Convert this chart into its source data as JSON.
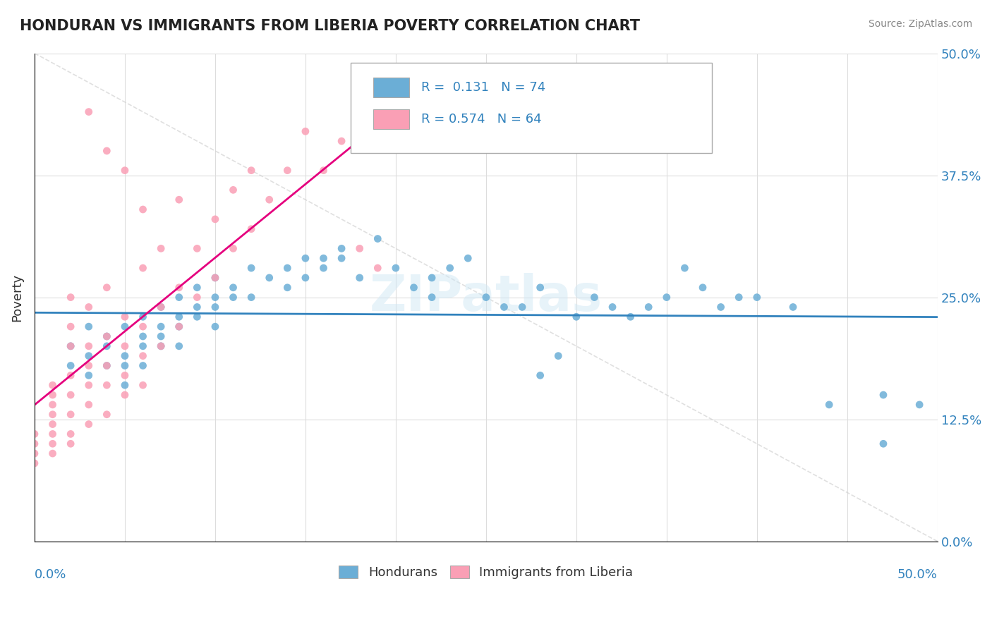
{
  "title": "HONDURAN VS IMMIGRANTS FROM LIBERIA POVERTY CORRELATION CHART",
  "source": "Source: ZipAtlas.com",
  "ylabel": "Poverty",
  "legend1_label": "Hondurans",
  "legend2_label": "Immigrants from Liberia",
  "R1": 0.131,
  "N1": 74,
  "R2": 0.574,
  "N2": 64,
  "watermark": "ZIPatlas",
  "blue_color": "#6baed6",
  "pink_color": "#fa9fb5",
  "blue_line_color": "#3182bd",
  "pink_line_color": "#e5007e",
  "xmin": 0.0,
  "xmax": 0.5,
  "ymin": 0.0,
  "ymax": 0.5,
  "blue_scatter": [
    [
      0.02,
      0.2
    ],
    [
      0.02,
      0.18
    ],
    [
      0.03,
      0.22
    ],
    [
      0.03,
      0.19
    ],
    [
      0.03,
      0.17
    ],
    [
      0.04,
      0.21
    ],
    [
      0.04,
      0.18
    ],
    [
      0.04,
      0.2
    ],
    [
      0.05,
      0.22
    ],
    [
      0.05,
      0.19
    ],
    [
      0.05,
      0.18
    ],
    [
      0.05,
      0.16
    ],
    [
      0.06,
      0.23
    ],
    [
      0.06,
      0.21
    ],
    [
      0.06,
      0.2
    ],
    [
      0.06,
      0.18
    ],
    [
      0.07,
      0.24
    ],
    [
      0.07,
      0.22
    ],
    [
      0.07,
      0.21
    ],
    [
      0.07,
      0.2
    ],
    [
      0.08,
      0.25
    ],
    [
      0.08,
      0.23
    ],
    [
      0.08,
      0.22
    ],
    [
      0.08,
      0.2
    ],
    [
      0.09,
      0.26
    ],
    [
      0.09,
      0.24
    ],
    [
      0.09,
      0.23
    ],
    [
      0.1,
      0.27
    ],
    [
      0.1,
      0.25
    ],
    [
      0.1,
      0.24
    ],
    [
      0.1,
      0.22
    ],
    [
      0.11,
      0.26
    ],
    [
      0.11,
      0.25
    ],
    [
      0.12,
      0.28
    ],
    [
      0.12,
      0.25
    ],
    [
      0.13,
      0.27
    ],
    [
      0.14,
      0.28
    ],
    [
      0.14,
      0.26
    ],
    [
      0.15,
      0.29
    ],
    [
      0.15,
      0.27
    ],
    [
      0.16,
      0.29
    ],
    [
      0.16,
      0.28
    ],
    [
      0.17,
      0.3
    ],
    [
      0.17,
      0.29
    ],
    [
      0.18,
      0.27
    ],
    [
      0.19,
      0.31
    ],
    [
      0.2,
      0.28
    ],
    [
      0.21,
      0.26
    ],
    [
      0.22,
      0.27
    ],
    [
      0.22,
      0.25
    ],
    [
      0.23,
      0.28
    ],
    [
      0.24,
      0.29
    ],
    [
      0.25,
      0.25
    ],
    [
      0.26,
      0.24
    ],
    [
      0.27,
      0.24
    ],
    [
      0.28,
      0.26
    ],
    [
      0.28,
      0.17
    ],
    [
      0.29,
      0.19
    ],
    [
      0.3,
      0.23
    ],
    [
      0.31,
      0.25
    ],
    [
      0.32,
      0.24
    ],
    [
      0.33,
      0.23
    ],
    [
      0.34,
      0.24
    ],
    [
      0.35,
      0.25
    ],
    [
      0.36,
      0.28
    ],
    [
      0.37,
      0.26
    ],
    [
      0.38,
      0.24
    ],
    [
      0.39,
      0.25
    ],
    [
      0.4,
      0.25
    ],
    [
      0.42,
      0.24
    ],
    [
      0.44,
      0.14
    ],
    [
      0.47,
      0.15
    ],
    [
      0.47,
      0.1
    ],
    [
      0.49,
      0.14
    ]
  ],
  "pink_scatter": [
    [
      0.0,
      0.08
    ],
    [
      0.0,
      0.09
    ],
    [
      0.0,
      0.1
    ],
    [
      0.0,
      0.11
    ],
    [
      0.01,
      0.09
    ],
    [
      0.01,
      0.1
    ],
    [
      0.01,
      0.11
    ],
    [
      0.01,
      0.12
    ],
    [
      0.01,
      0.13
    ],
    [
      0.01,
      0.14
    ],
    [
      0.01,
      0.15
    ],
    [
      0.01,
      0.16
    ],
    [
      0.02,
      0.1
    ],
    [
      0.02,
      0.11
    ],
    [
      0.02,
      0.13
    ],
    [
      0.02,
      0.15
    ],
    [
      0.02,
      0.17
    ],
    [
      0.02,
      0.2
    ],
    [
      0.02,
      0.22
    ],
    [
      0.02,
      0.25
    ],
    [
      0.03,
      0.12
    ],
    [
      0.03,
      0.14
    ],
    [
      0.03,
      0.16
    ],
    [
      0.03,
      0.18
    ],
    [
      0.03,
      0.2
    ],
    [
      0.03,
      0.24
    ],
    [
      0.04,
      0.13
    ],
    [
      0.04,
      0.16
    ],
    [
      0.04,
      0.18
    ],
    [
      0.04,
      0.21
    ],
    [
      0.04,
      0.26
    ],
    [
      0.05,
      0.15
    ],
    [
      0.05,
      0.17
    ],
    [
      0.05,
      0.2
    ],
    [
      0.05,
      0.23
    ],
    [
      0.06,
      0.16
    ],
    [
      0.06,
      0.19
    ],
    [
      0.06,
      0.22
    ],
    [
      0.06,
      0.28
    ],
    [
      0.07,
      0.2
    ],
    [
      0.07,
      0.24
    ],
    [
      0.07,
      0.3
    ],
    [
      0.08,
      0.22
    ],
    [
      0.08,
      0.26
    ],
    [
      0.08,
      0.35
    ],
    [
      0.09,
      0.25
    ],
    [
      0.09,
      0.3
    ],
    [
      0.1,
      0.27
    ],
    [
      0.1,
      0.33
    ],
    [
      0.11,
      0.3
    ],
    [
      0.11,
      0.36
    ],
    [
      0.12,
      0.32
    ],
    [
      0.12,
      0.38
    ],
    [
      0.13,
      0.35
    ],
    [
      0.14,
      0.38
    ],
    [
      0.15,
      0.42
    ],
    [
      0.16,
      0.38
    ],
    [
      0.17,
      0.41
    ],
    [
      0.18,
      0.3
    ],
    [
      0.19,
      0.28
    ],
    [
      0.03,
      0.44
    ],
    [
      0.04,
      0.4
    ],
    [
      0.05,
      0.38
    ],
    [
      0.06,
      0.34
    ]
  ]
}
